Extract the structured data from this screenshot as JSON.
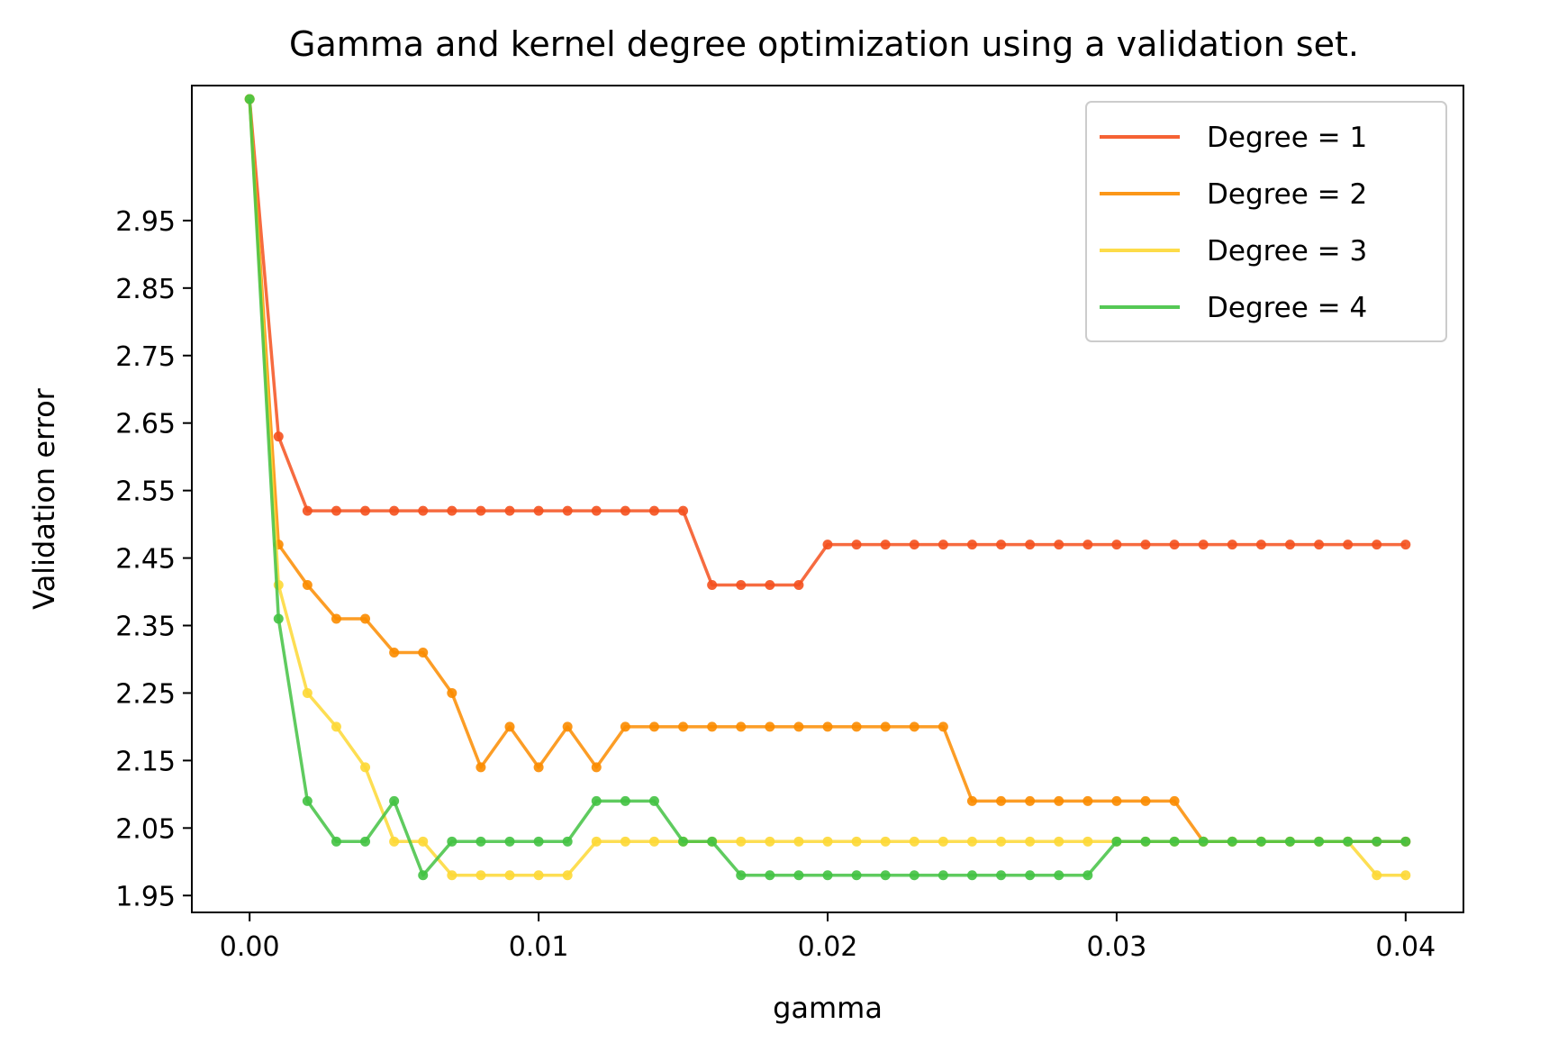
{
  "chart_data": {
    "type": "line",
    "title": "Gamma and kernel degree optimization using a validation set.",
    "xlabel": "gamma",
    "ylabel": "Validation error",
    "xlim": [
      -0.002,
      0.042
    ],
    "ylim": [
      1.925,
      3.15
    ],
    "xticks": [
      "0.00",
      "0.01",
      "0.02",
      "0.03",
      "0.04"
    ],
    "xtick_values": [
      0.0,
      0.01,
      0.02,
      0.03,
      0.04
    ],
    "yticks": [
      "1.95",
      "2.05",
      "2.15",
      "2.25",
      "2.35",
      "2.45",
      "2.55",
      "2.65",
      "2.75",
      "2.85",
      "2.95"
    ],
    "ytick_values": [
      1.95,
      2.05,
      2.15,
      2.25,
      2.35,
      2.45,
      2.55,
      2.65,
      2.75,
      2.85,
      2.95
    ],
    "legend_position": "top-right",
    "grid": false,
    "x": [
      0.0,
      0.001,
      0.002,
      0.003,
      0.004,
      0.005,
      0.006,
      0.007,
      0.008,
      0.009,
      0.01,
      0.011,
      0.012,
      0.013,
      0.014,
      0.015,
      0.016,
      0.017,
      0.018,
      0.019,
      0.02,
      0.021,
      0.022,
      0.023,
      0.024,
      0.025,
      0.026,
      0.027,
      0.028,
      0.029,
      0.03,
      0.031,
      0.032,
      0.033,
      0.034,
      0.035,
      0.036,
      0.037,
      0.038,
      0.039,
      0.04
    ],
    "series": [
      {
        "name": "Degree = 1",
        "color": "#f4511e",
        "values": [
          3.13,
          2.63,
          2.52,
          2.52,
          2.52,
          2.52,
          2.52,
          2.52,
          2.52,
          2.52,
          2.52,
          2.52,
          2.52,
          2.52,
          2.52,
          2.52,
          2.41,
          2.41,
          2.41,
          2.41,
          2.47,
          2.47,
          2.47,
          2.47,
          2.47,
          2.47,
          2.47,
          2.47,
          2.47,
          2.47,
          2.47,
          2.47,
          2.47,
          2.47,
          2.47,
          2.47,
          2.47,
          2.47,
          2.47,
          2.47,
          2.47
        ]
      },
      {
        "name": "Degree = 2",
        "color": "#fb8c00",
        "values": [
          3.13,
          2.47,
          2.41,
          2.36,
          2.36,
          2.31,
          2.31,
          2.25,
          2.14,
          2.2,
          2.14,
          2.2,
          2.14,
          2.2,
          2.2,
          2.2,
          2.2,
          2.2,
          2.2,
          2.2,
          2.2,
          2.2,
          2.2,
          2.2,
          2.2,
          2.09,
          2.09,
          2.09,
          2.09,
          2.09,
          2.09,
          2.09,
          2.09,
          2.03,
          2.03,
          2.03,
          2.03,
          2.03,
          2.03,
          2.03,
          2.03
        ]
      },
      {
        "name": "Degree = 3",
        "color": "#fdd835",
        "values": [
          3.13,
          2.41,
          2.25,
          2.2,
          2.14,
          2.03,
          2.03,
          1.98,
          1.98,
          1.98,
          1.98,
          1.98,
          2.03,
          2.03,
          2.03,
          2.03,
          2.03,
          2.03,
          2.03,
          2.03,
          2.03,
          2.03,
          2.03,
          2.03,
          2.03,
          2.03,
          2.03,
          2.03,
          2.03,
          2.03,
          2.03,
          2.03,
          2.03,
          2.03,
          2.03,
          2.03,
          2.03,
          2.03,
          2.03,
          1.98,
          1.98
        ]
      },
      {
        "name": "Degree = 4",
        "color": "#43c243",
        "values": [
          3.13,
          2.36,
          2.09,
          2.03,
          2.03,
          2.09,
          1.98,
          2.03,
          2.03,
          2.03,
          2.03,
          2.03,
          2.09,
          2.09,
          2.09,
          2.03,
          2.03,
          1.98,
          1.98,
          1.98,
          1.98,
          1.98,
          1.98,
          1.98,
          1.98,
          1.98,
          1.98,
          1.98,
          1.98,
          1.98,
          2.03,
          2.03,
          2.03,
          2.03,
          2.03,
          2.03,
          2.03,
          2.03,
          2.03,
          2.03,
          2.03
        ]
      }
    ]
  }
}
